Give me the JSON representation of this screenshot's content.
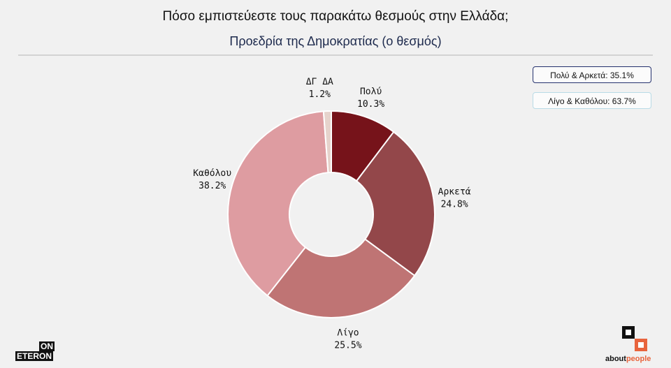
{
  "header": {
    "title": "Πόσο εμπιστεύεστε τους παρακάτω θεσμούς στην Ελλάδα;",
    "subtitle": "Προεδρία της Δημοκρατίας (ο θεσμός)"
  },
  "summary": {
    "positive": "Πολύ & Αρκετά: 35.1%",
    "negative": "Λίγο & Καθόλου: 63.7%"
  },
  "chart_data": {
    "type": "pie",
    "donut": true,
    "slices": [
      {
        "label": "Πολύ",
        "value": 10.3,
        "text": "10.3%",
        "color": "#76131a"
      },
      {
        "label": "Αρκετά",
        "value": 24.8,
        "text": "24.8%",
        "color": "#93474a"
      },
      {
        "label": "Λίγο",
        "value": 25.5,
        "text": "25.5%",
        "color": "#bf7474"
      },
      {
        "label": "Καθόλου",
        "value": 38.2,
        "text": "38.2%",
        "color": "#de9ca1"
      },
      {
        "label": "ΔΓ ΔΑ",
        "value": 1.2,
        "text": "1.2%",
        "color": "#e6d3cc"
      }
    ]
  },
  "logos": {
    "left_top": "ON",
    "left_bottom": "ETERON",
    "right_main": "about",
    "right_accent": "people"
  }
}
